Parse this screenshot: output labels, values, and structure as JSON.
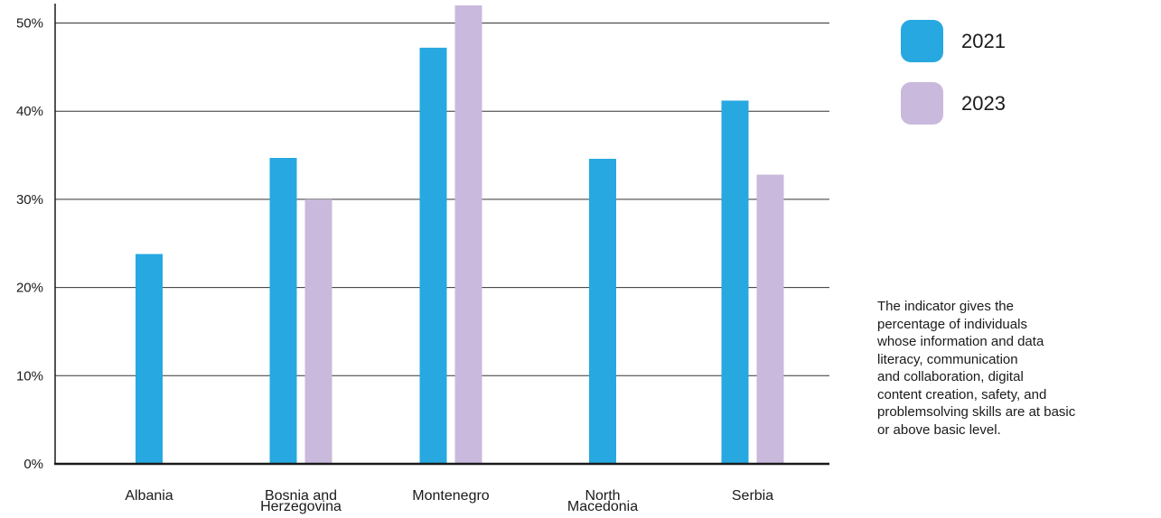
{
  "chart_data": {
    "type": "bar",
    "categories": [
      [
        "Albania"
      ],
      [
        "Bosnia and",
        "Herzegovina"
      ],
      [
        "Montenegro"
      ],
      [
        "North",
        "Macedonia"
      ],
      [
        "Serbia"
      ]
    ],
    "series": [
      {
        "name": "2021",
        "color": "#27a8e0",
        "values": [
          23.8,
          34.7,
          47.2,
          34.6,
          41.2
        ]
      },
      {
        "name": "2023",
        "color": "#c9b9dc",
        "values": [
          null,
          30.0,
          52.0,
          null,
          32.8
        ]
      }
    ],
    "y_ticks": [
      "0%",
      "10%",
      "20%",
      "30%",
      "40%",
      "50%"
    ],
    "y_tick_values": [
      0,
      10,
      20,
      30,
      40,
      50
    ],
    "ylim": [
      0,
      52
    ],
    "grid": true,
    "legend_position": "top-right"
  },
  "note_lines": [
    "The indicator gives the",
    "percentage of individuals",
    "whose information and data",
    "literacy, communication",
    "and collaboration, digital",
    "content creation, safety, and",
    "problemsolving skills are at basic",
    "or above basic level."
  ]
}
